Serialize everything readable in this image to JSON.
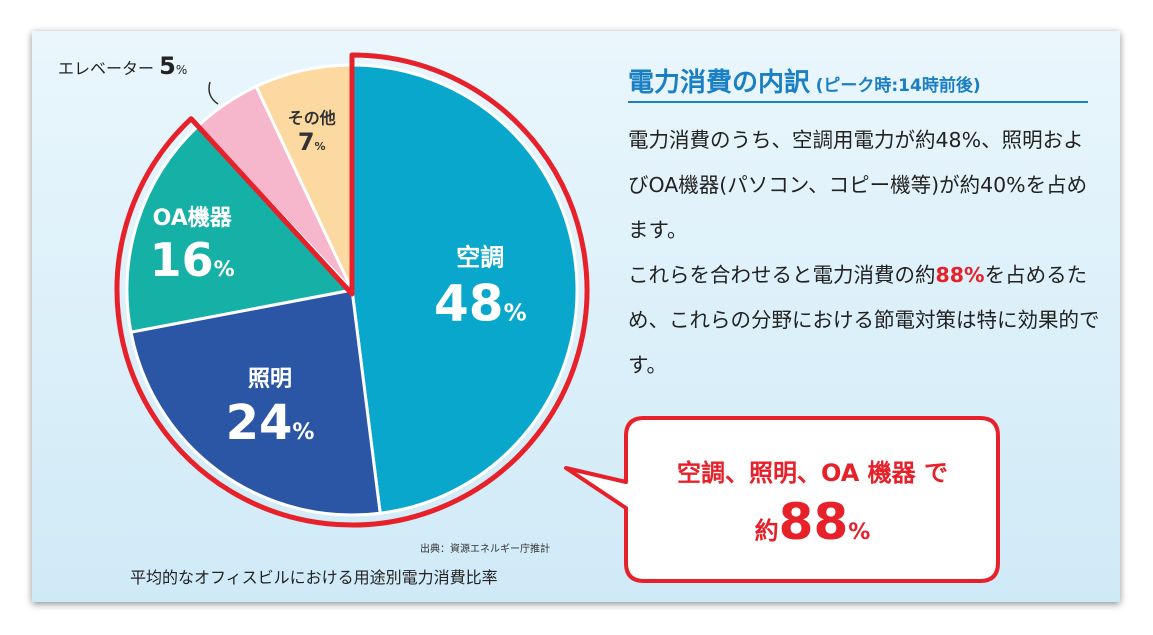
{
  "chart_data": {
    "type": "pie",
    "title": "平均的なオフィスビルにおける用途別電力消費比率",
    "source": "出典：資源エネルギー庁推計",
    "unit": "%",
    "slices": [
      {
        "name": "空調",
        "value": 48,
        "color": "#0aa7cc"
      },
      {
        "name": "照明",
        "value": 24,
        "color": "#2b55a5"
      },
      {
        "name": "OA機器",
        "value": 16,
        "color": "#15b0a6"
      },
      {
        "name": "エレベーター",
        "value": 5,
        "color": "#f6b6cb"
      },
      {
        "name": "その他",
        "value": 7,
        "color": "#fcd9a0"
      }
    ],
    "highlight_color": "#e6212a"
  },
  "heading": {
    "main": "電力消費の内訳",
    "sub": "(ピーク時:14時前後)"
  },
  "body": {
    "p1": "電力消費のうち、空調用電力が約48%、照明およびOA機器(パソコン、コピー機等)が約40%を占めます。",
    "p2_before": "これらを合わせると電力消費の約",
    "p2_highlight": "88%",
    "p2_after": "を占めるため、これらの分野における節電対策は特に効果的です。"
  },
  "callout": {
    "line1": "空調、照明、OA 機器 で",
    "line2_prefix": "約",
    "line2_value": "88",
    "line2_unit": "%"
  }
}
